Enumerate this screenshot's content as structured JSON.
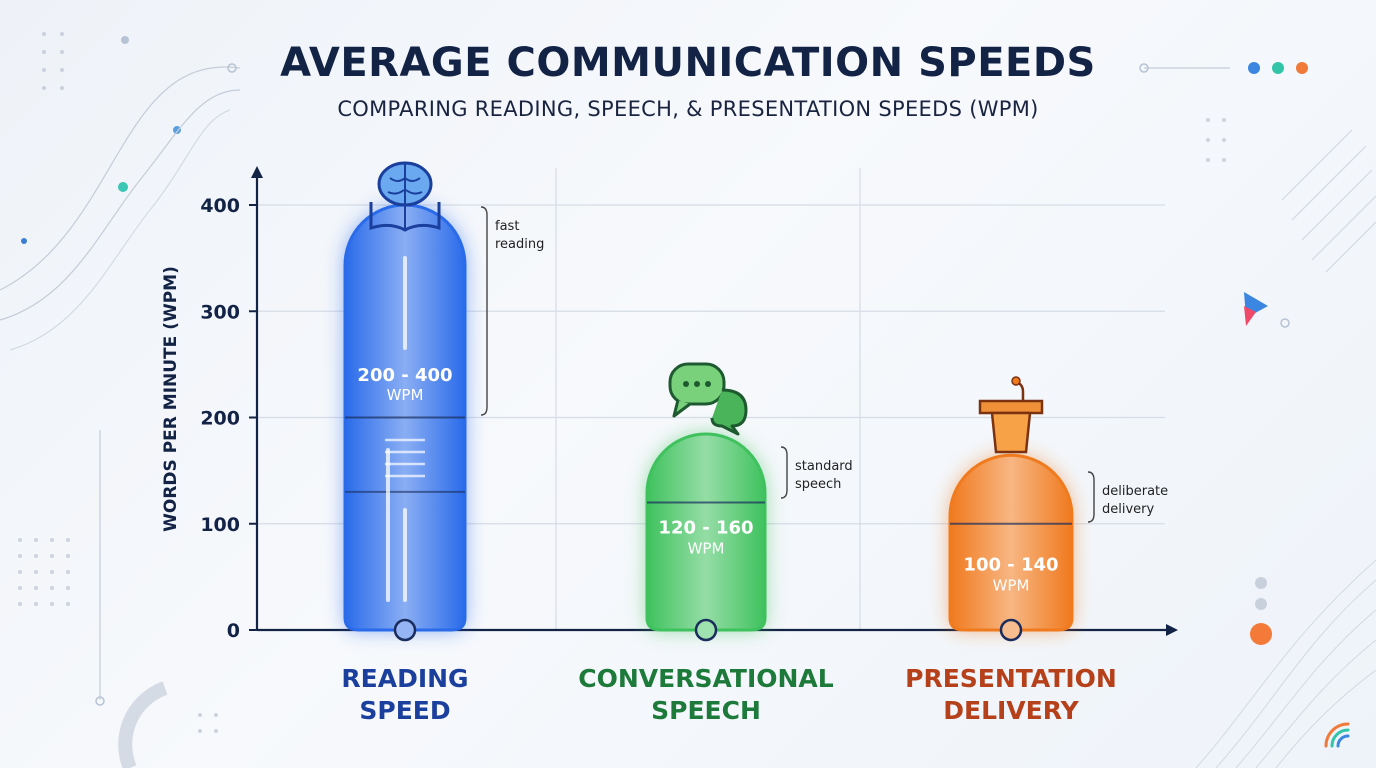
{
  "title": "AVERAGE COMMUNICATION SPEEDS",
  "subtitle": "COMPARING READING, SPEECH, & PRESENTATION SPEEDS (WPM)",
  "colors": {
    "reading": "#2a6bea",
    "conversational": "#3fc25e",
    "presentation": "#f07a1e",
    "axis": "#132345",
    "reading_label": "#1b3f9c",
    "conversational_label": "#1d7a3a",
    "presentation_label": "#b5401a"
  },
  "chart_data": {
    "type": "bar",
    "ylabel": "WORDS PER MINUTE (WPM)",
    "xlabel": "",
    "ylim": [
      0,
      400
    ],
    "yticks": [
      "0",
      "100",
      "200",
      "300",
      "400"
    ],
    "categories": [
      "READING SPEED",
      "CONVERSATIONAL SPEECH",
      "PRESENTATION DELIVERY"
    ],
    "bars": [
      {
        "category_lines": [
          "READING",
          "SPEED"
        ],
        "range": [
          200,
          400
        ],
        "value_label": "200 - 400",
        "unit_label": "WPM",
        "annotation": [
          "fast",
          "reading"
        ],
        "icon": "brain-book-icon",
        "color_key": "reading",
        "label_color_key": "reading_label"
      },
      {
        "category_lines": [
          "CONVERSATIONAL",
          "SPEECH"
        ],
        "range": [
          120,
          160
        ],
        "value_label": "120 - 160",
        "unit_label": "WPM",
        "annotation": [
          "standard",
          "speech"
        ],
        "icon": "chat-bubbles-icon",
        "color_key": "conversational",
        "label_color_key": "conversational_label"
      },
      {
        "category_lines": [
          "PRESENTATION",
          "DELIVERY"
        ],
        "range": [
          100,
          140
        ],
        "value_label": "100 - 140",
        "unit_label": "WPM",
        "annotation": [
          "deliberate",
          "delivery"
        ],
        "icon": "podium-icon",
        "color_key": "presentation",
        "label_color_key": "presentation_label"
      }
    ]
  }
}
